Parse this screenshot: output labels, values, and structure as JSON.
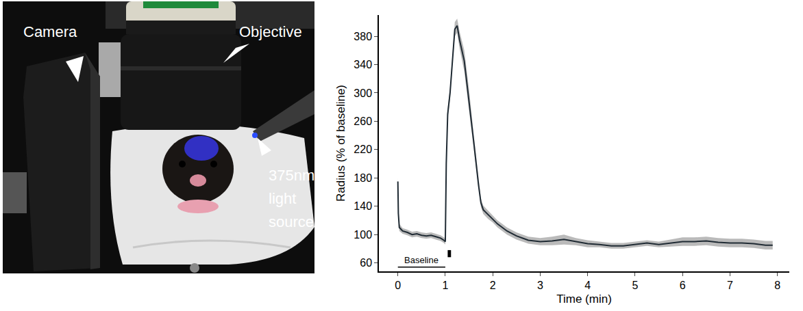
{
  "photo": {
    "labels": [
      "Camera",
      "Objective",
      "375nm light source"
    ]
  },
  "chart_data": {
    "type": "line",
    "xlabel": "Time (min)",
    "ylabel": "Radius (% of baseline)",
    "x": [
      0.0,
      0.01,
      0.03,
      0.1,
      0.2,
      0.3,
      0.4,
      0.5,
      0.6,
      0.7,
      0.8,
      0.9,
      0.97,
      1.0,
      1.02,
      1.05,
      1.1,
      1.15,
      1.2,
      1.25,
      1.3,
      1.4,
      1.5,
      1.6,
      1.7,
      1.75,
      1.8,
      1.9,
      2.0,
      2.1,
      2.2,
      2.3,
      2.5,
      2.75,
      3.0,
      3.25,
      3.5,
      3.75,
      4.0,
      4.25,
      4.5,
      4.75,
      5.0,
      5.25,
      5.5,
      5.75,
      6.0,
      6.25,
      6.5,
      6.75,
      7.0,
      7.25,
      7.5,
      7.75,
      7.9
    ],
    "values": [
      175,
      130,
      110,
      105,
      103,
      100,
      101,
      99,
      98,
      99,
      97,
      95,
      92,
      90,
      200,
      270,
      300,
      350,
      390,
      395,
      375,
      345,
      290,
      230,
      170,
      145,
      135,
      128,
      122,
      115,
      110,
      105,
      98,
      92,
      90,
      91,
      93,
      90,
      87,
      86,
      84,
      84,
      86,
      88,
      86,
      88,
      90,
      90,
      91,
      89,
      88,
      88,
      87,
      85,
      85
    ],
    "error": [
      5,
      5,
      5,
      4,
      4,
      4,
      4,
      4,
      4,
      4,
      4,
      4,
      4,
      4,
      6,
      8,
      8,
      8,
      10,
      10,
      12,
      15,
      15,
      10,
      8,
      6,
      6,
      6,
      5,
      5,
      5,
      5,
      5,
      5,
      5,
      6,
      7,
      5,
      5,
      4,
      4,
      4,
      4,
      4,
      4,
      5,
      6,
      6,
      6,
      6,
      6,
      6,
      6,
      6,
      6
    ],
    "color": "#1f2a33",
    "xlim": [
      -0.4,
      8.25
    ],
    "ylim": [
      48,
      410
    ],
    "xticks": [
      0,
      1,
      2,
      3,
      4,
      5,
      6,
      7,
      8
    ],
    "yticks": [
      60,
      100,
      140,
      180,
      220,
      260,
      300,
      340,
      380
    ],
    "grid": false,
    "baseline": {
      "text": "Baseline",
      "x": [
        0,
        1
      ],
      "y": 54
    },
    "stimulus": {
      "x": [
        1.05,
        1.12
      ],
      "y": [
        68,
        78
      ]
    }
  }
}
